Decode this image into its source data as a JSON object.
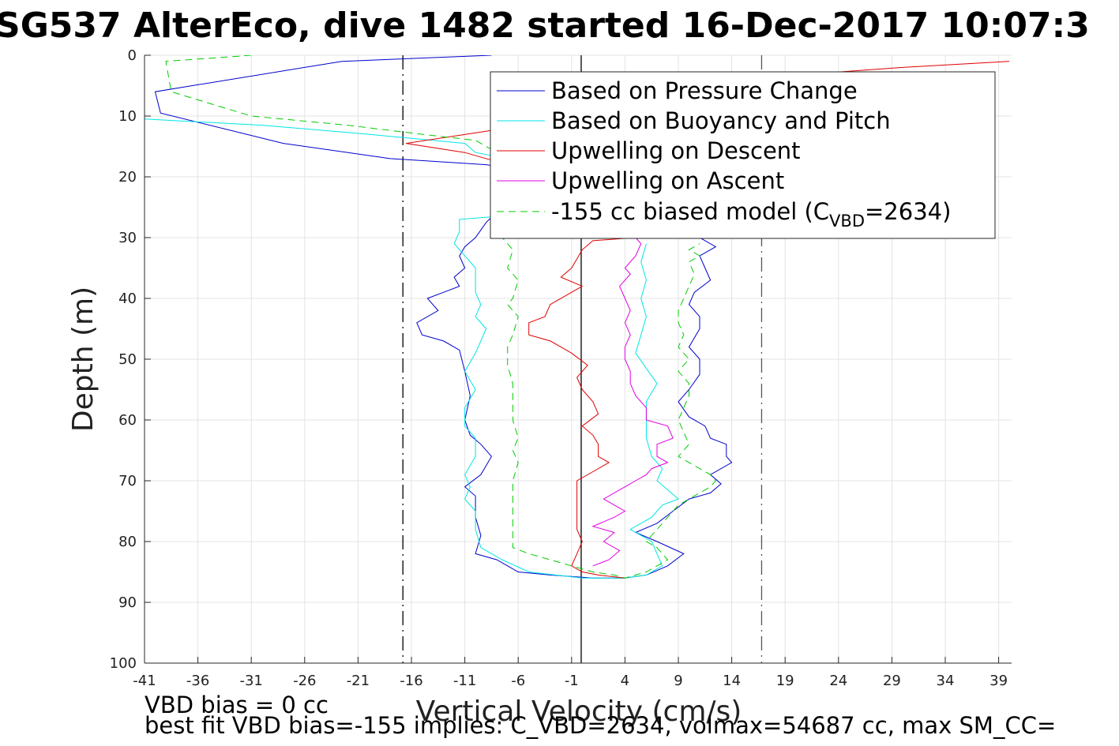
{
  "chart_data": {
    "type": "line",
    "title": "SG537 AlterEco, dive 1482 started 16-Dec-2017 10:07:3",
    "xlabel": "Vertical Velocity (cm/s)",
    "ylabel": "Depth (m)",
    "xlim": [
      -41,
      40
    ],
    "ylim": [
      0,
      100
    ],
    "y_reversed": true,
    "grid": true,
    "xticks": [
      -41,
      -36,
      -31,
      -26,
      -21,
      -16,
      -11,
      -6,
      -1,
      4,
      9,
      14,
      19,
      24,
      29,
      34,
      39
    ],
    "yticks": [
      0,
      10,
      20,
      30,
      40,
      50,
      60,
      70,
      80,
      90,
      100
    ],
    "legend_position": "top-right",
    "legend": [
      {
        "label": "Based on Pressure Change",
        "color": "#0000cc",
        "dash": "solid"
      },
      {
        "label": "Based on Buoyancy and Pitch",
        "color": "#00e5e5",
        "dash": "solid"
      },
      {
        "label": "Upwelling on Descent",
        "color": "#e00000",
        "dash": "solid"
      },
      {
        "label": "Upwelling on Ascent",
        "color": "#e000e0",
        "dash": "solid"
      },
      {
        "label_pre": "-155 cc biased model (C",
        "label_sub": "VBD",
        "label_post": "=2634)",
        "color": "#00cc00",
        "dash": "dashed"
      }
    ],
    "reference_lines": [
      {
        "x": -0.1,
        "color": "#000000",
        "dash": "solid"
      },
      {
        "x": -16.8,
        "color": "#000000",
        "dash": "dashdot"
      },
      {
        "x": 16.8,
        "color": "#555555",
        "dash": "dashdot"
      }
    ],
    "series": [
      {
        "name": "Based on Pressure Change",
        "color": "#0000cc",
        "points": [
          [
            -8.5,
            0
          ],
          [
            -22.5,
            1
          ],
          [
            -40,
            6
          ],
          [
            -39.5,
            9.5
          ],
          [
            -28,
            14.5
          ],
          [
            -18,
            17
          ],
          [
            -9,
            18
          ],
          [
            -7,
            18.5
          ],
          [
            -4,
            19
          ],
          [
            -9,
            27.5
          ],
          [
            -10,
            30
          ],
          [
            -11,
            31.5
          ],
          [
            -11.5,
            33
          ],
          [
            -11,
            35
          ],
          [
            -12,
            36.5
          ],
          [
            -11.5,
            38
          ],
          [
            -13,
            39
          ],
          [
            -14.5,
            40
          ],
          [
            -13.5,
            42
          ],
          [
            -15.5,
            44
          ],
          [
            -15,
            46
          ],
          [
            -13,
            47
          ],
          [
            -11.5,
            48.5
          ],
          [
            -11,
            52
          ],
          [
            -10.5,
            56
          ],
          [
            -11,
            60
          ],
          [
            -10.5,
            62.5
          ],
          [
            -9.5,
            64
          ],
          [
            -8.5,
            66
          ],
          [
            -9.5,
            69
          ],
          [
            -11,
            71
          ],
          [
            -10,
            72.5
          ],
          [
            -10,
            76
          ],
          [
            -9.5,
            79
          ],
          [
            -10,
            82
          ],
          [
            -8,
            83
          ],
          [
            -7,
            84
          ],
          [
            -6,
            85
          ],
          [
            -3,
            85.5
          ],
          [
            1,
            86
          ],
          [
            4,
            86
          ],
          [
            6,
            85.5
          ],
          [
            8,
            84
          ],
          [
            9.5,
            82
          ],
          [
            7,
            80
          ],
          [
            5,
            78.5
          ],
          [
            7,
            77
          ],
          [
            8.5,
            75
          ],
          [
            10,
            73
          ],
          [
            12,
            72
          ],
          [
            13,
            70.5
          ],
          [
            12,
            69
          ],
          [
            14,
            67
          ],
          [
            13.5,
            66
          ],
          [
            13.5,
            64
          ],
          [
            12,
            63
          ],
          [
            11.5,
            61
          ],
          [
            10,
            59.5
          ],
          [
            9,
            57
          ],
          [
            10,
            55
          ],
          [
            11,
            52.5
          ],
          [
            11,
            50
          ],
          [
            10,
            48
          ],
          [
            11,
            45
          ],
          [
            11,
            43
          ],
          [
            10,
            41
          ],
          [
            10.5,
            39
          ],
          [
            12,
            37
          ],
          [
            11.5,
            35
          ],
          [
            11,
            33
          ],
          [
            12.5,
            31.5
          ],
          [
            11,
            30
          ],
          [
            10,
            28
          ]
        ]
      },
      {
        "name": "Based on Buoyancy and Pitch",
        "color": "#00e5e5",
        "points": [
          [
            -41,
            10.5
          ],
          [
            -30,
            11.5
          ],
          [
            -20,
            13
          ],
          [
            -11,
            14.5
          ],
          [
            -10,
            16
          ],
          [
            -7,
            17
          ],
          [
            -8,
            26.5
          ],
          [
            -11.5,
            27
          ],
          [
            -11.5,
            29
          ],
          [
            -12,
            31
          ],
          [
            -11,
            33
          ],
          [
            -10,
            35
          ],
          [
            -10,
            39
          ],
          [
            -9.5,
            41
          ],
          [
            -10,
            43
          ],
          [
            -9,
            45
          ],
          [
            -9.5,
            47
          ],
          [
            -10,
            49
          ],
          [
            -11,
            52
          ],
          [
            -10,
            55
          ],
          [
            -11,
            58
          ],
          [
            -11,
            61
          ],
          [
            -10,
            63
          ],
          [
            -10,
            66
          ],
          [
            -11,
            69
          ],
          [
            -10.5,
            71
          ],
          [
            -11,
            73
          ],
          [
            -10,
            75
          ],
          [
            -10,
            78
          ],
          [
            -9.5,
            81
          ],
          [
            -7.5,
            83
          ],
          [
            -5,
            85
          ],
          [
            0,
            86
          ],
          [
            4,
            86
          ],
          [
            6,
            85.5
          ],
          [
            7.5,
            84
          ],
          [
            7,
            82
          ],
          [
            6.5,
            80
          ],
          [
            4.5,
            78
          ],
          [
            6.5,
            76
          ],
          [
            7.5,
            74
          ],
          [
            9,
            73
          ],
          [
            7,
            70
          ],
          [
            7.5,
            68
          ],
          [
            6.5,
            66
          ],
          [
            6,
            63
          ],
          [
            6,
            60
          ],
          [
            6,
            57
          ],
          [
            7,
            54
          ],
          [
            6,
            51.5
          ],
          [
            5,
            49
          ],
          [
            5.5,
            46
          ],
          [
            6,
            43
          ],
          [
            5.5,
            40
          ],
          [
            6,
            37
          ],
          [
            5.5,
            34
          ],
          [
            6,
            31
          ]
        ]
      },
      {
        "name": "Upwelling on Descent",
        "color": "#e00000",
        "points": [
          [
            40,
            1
          ],
          [
            30,
            2
          ],
          [
            22,
            3
          ],
          [
            8,
            5
          ],
          [
            2,
            8
          ],
          [
            -4,
            11
          ],
          [
            -9,
            12.5
          ],
          [
            -16.5,
            14.5
          ],
          [
            -11,
            16
          ],
          [
            -8,
            17.5
          ],
          [
            -6,
            18.5
          ],
          [
            2,
            26
          ],
          [
            4,
            28
          ],
          [
            5,
            30
          ],
          [
            1,
            30.5
          ],
          [
            0,
            32
          ],
          [
            -1,
            35
          ],
          [
            -2,
            36.5
          ],
          [
            0,
            38
          ],
          [
            -1.5,
            39.5
          ],
          [
            -3,
            41
          ],
          [
            -3.5,
            43
          ],
          [
            -5,
            44
          ],
          [
            -5,
            46
          ],
          [
            -3,
            47
          ],
          [
            -2,
            48
          ],
          [
            -1,
            49
          ],
          [
            0.5,
            51
          ],
          [
            -0.5,
            53
          ],
          [
            0,
            55
          ],
          [
            1,
            57
          ],
          [
            1.5,
            59
          ],
          [
            0,
            61
          ],
          [
            1,
            62.5
          ],
          [
            1.5,
            64
          ],
          [
            1.5,
            66
          ],
          [
            2.5,
            67
          ],
          [
            1,
            68.5
          ],
          [
            -0.5,
            70
          ],
          [
            -0.5,
            72.5
          ],
          [
            -0.5,
            75
          ],
          [
            -0.5,
            78
          ],
          [
            0,
            80
          ],
          [
            -0.5,
            82
          ],
          [
            -1,
            84
          ],
          [
            0,
            85
          ],
          [
            1.5,
            85.5
          ],
          [
            4,
            86
          ]
        ]
      },
      {
        "name": "Upwelling on Ascent",
        "color": "#e000e0",
        "points": [
          [
            1,
            84
          ],
          [
            2.5,
            83
          ],
          [
            3.5,
            81.5
          ],
          [
            2,
            80
          ],
          [
            3,
            78.5
          ],
          [
            1,
            77.5
          ],
          [
            3,
            76
          ],
          [
            4,
            75
          ],
          [
            3,
            74
          ],
          [
            2,
            73
          ],
          [
            4,
            71
          ],
          [
            5,
            70
          ],
          [
            6,
            69
          ],
          [
            6.5,
            68
          ],
          [
            8,
            67
          ],
          [
            7,
            66
          ],
          [
            7,
            64
          ],
          [
            8.5,
            63
          ],
          [
            8,
            61
          ],
          [
            6,
            60
          ],
          [
            6,
            58
          ],
          [
            5,
            56
          ],
          [
            4.5,
            54
          ],
          [
            4.5,
            52
          ],
          [
            4,
            50
          ],
          [
            4,
            48
          ],
          [
            4.5,
            46
          ],
          [
            4,
            44
          ],
          [
            4.5,
            42
          ],
          [
            4,
            40
          ],
          [
            3.5,
            38
          ],
          [
            4.5,
            36
          ],
          [
            4,
            35
          ],
          [
            5,
            33
          ],
          [
            5.5,
            31
          ],
          [
            5,
            30
          ]
        ]
      },
      {
        "name": "-155 cc biased model (CVBD=2634)",
        "color": "#00cc00",
        "dashed": true,
        "points": [
          [
            -31,
            0
          ],
          [
            -39,
            1
          ],
          [
            -38.5,
            6
          ],
          [
            -31,
            10
          ],
          [
            -22,
            11.5
          ],
          [
            -15,
            13
          ],
          [
            -10,
            14
          ],
          [
            -8,
            16
          ],
          [
            -7,
            27.5
          ],
          [
            -7.5,
            30
          ],
          [
            -6.5,
            32
          ],
          [
            -7,
            35
          ],
          [
            -6,
            37
          ],
          [
            -6.5,
            40
          ],
          [
            -7,
            41
          ],
          [
            -6,
            43
          ],
          [
            -6.5,
            46
          ],
          [
            -7,
            48
          ],
          [
            -7,
            51
          ],
          [
            -6.5,
            54
          ],
          [
            -6.5,
            57
          ],
          [
            -6.5,
            60
          ],
          [
            -6,
            63
          ],
          [
            -6.5,
            65
          ],
          [
            -6,
            67
          ],
          [
            -6.5,
            70
          ],
          [
            -6.5,
            73
          ],
          [
            -6.5,
            76
          ],
          [
            -6.5,
            79
          ],
          [
            -6.5,
            81
          ],
          [
            -5,
            82
          ],
          [
            -3,
            83
          ],
          [
            -1,
            84
          ],
          [
            1,
            85
          ],
          [
            3,
            85.5
          ],
          [
            4,
            86
          ],
          [
            6,
            85
          ],
          [
            7,
            84
          ],
          [
            8,
            83
          ],
          [
            7.5,
            82
          ],
          [
            7,
            81
          ],
          [
            6,
            80
          ],
          [
            7,
            78
          ],
          [
            8,
            76
          ],
          [
            9,
            74
          ],
          [
            10,
            73
          ],
          [
            11,
            72
          ],
          [
            12,
            71
          ],
          [
            12.5,
            70
          ],
          [
            12,
            69
          ],
          [
            11,
            68
          ],
          [
            10,
            67
          ],
          [
            9,
            66
          ],
          [
            10,
            64
          ],
          [
            9.5,
            62
          ],
          [
            9,
            60
          ],
          [
            9.5,
            58
          ],
          [
            10,
            56
          ],
          [
            10,
            54
          ],
          [
            9,
            52
          ],
          [
            10,
            50
          ],
          [
            9,
            48
          ],
          [
            9.5,
            46
          ],
          [
            9,
            44
          ],
          [
            9,
            42
          ],
          [
            9.5,
            40
          ],
          [
            10,
            38
          ],
          [
            10.5,
            36
          ],
          [
            10,
            34
          ],
          [
            11,
            33
          ],
          [
            10,
            32
          ],
          [
            11,
            31
          ]
        ]
      }
    ]
  },
  "footer": {
    "line1": "VBD bias = 0 cc",
    "line2": "best fit VBD bias=-155 implies: C_VBD=2634, volmax=54687 cc, max SM_CC="
  }
}
